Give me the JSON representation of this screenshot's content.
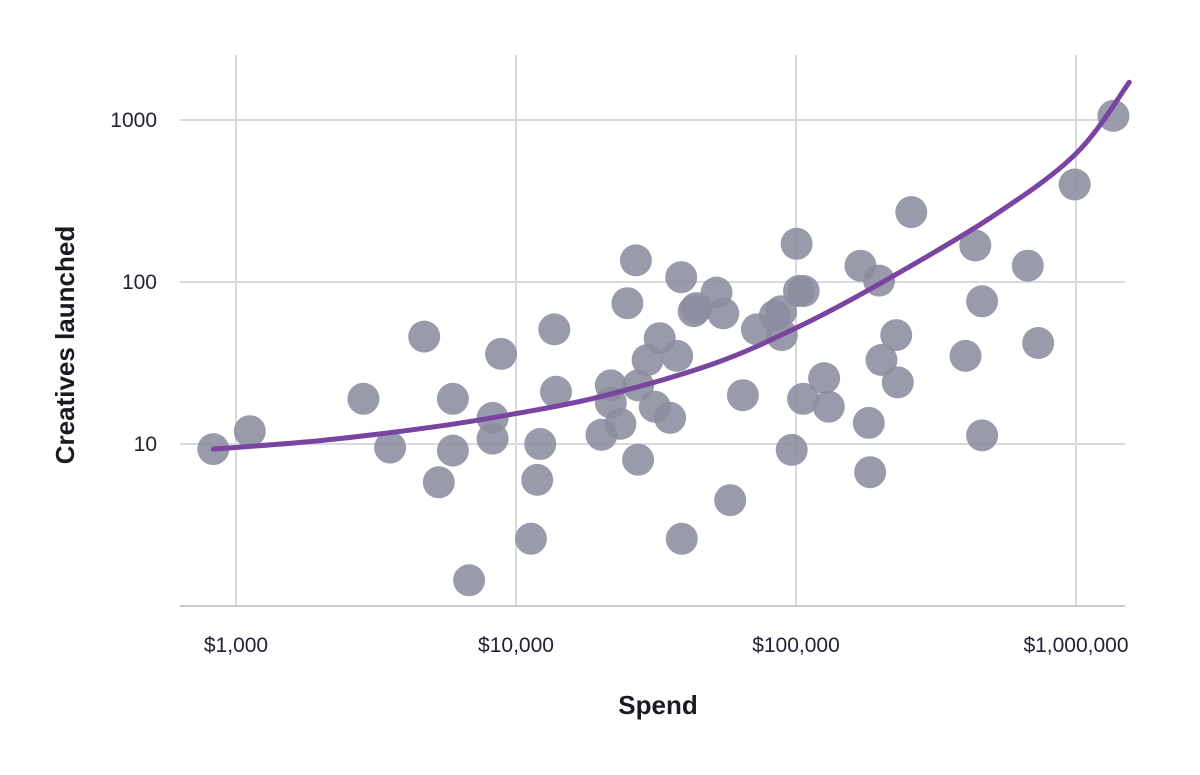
{
  "chart_data": {
    "type": "scatter",
    "title": "",
    "xlabel": "Spend",
    "ylabel": "Creatives launched",
    "x_scale": "log",
    "y_scale": "log",
    "xlim": [
      800,
      1550000
    ],
    "ylim": [
      1.2,
      2000
    ],
    "x_ticks": [
      {
        "value": 1000,
        "label": "$1,000"
      },
      {
        "value": 10000,
        "label": "$10,000"
      },
      {
        "value": 100000,
        "label": "$100,000"
      },
      {
        "value": 1000000,
        "label": "$1,000,000"
      }
    ],
    "y_ticks": [
      {
        "value": 10,
        "label": "10"
      },
      {
        "value": 100,
        "label": "100"
      },
      {
        "value": 1000,
        "label": "1000"
      }
    ],
    "grid": true,
    "legend": "none",
    "colors": {
      "points": "#8b8d9e",
      "trend": "#7a45a0",
      "grid": "#d9d9e0"
    },
    "points": [
      {
        "x": 830,
        "y": 9.3
      },
      {
        "x": 1120,
        "y": 12
      },
      {
        "x": 2850,
        "y": 19
      },
      {
        "x": 3550,
        "y": 9.5
      },
      {
        "x": 4700,
        "y": 46
      },
      {
        "x": 5300,
        "y": 5.8
      },
      {
        "x": 5950,
        "y": 19
      },
      {
        "x": 5950,
        "y": 9.1
      },
      {
        "x": 6800,
        "y": 1.44
      },
      {
        "x": 8250,
        "y": 14.5
      },
      {
        "x": 8250,
        "y": 10.8
      },
      {
        "x": 8850,
        "y": 36
      },
      {
        "x": 11300,
        "y": 2.6
      },
      {
        "x": 11900,
        "y": 6
      },
      {
        "x": 12200,
        "y": 10
      },
      {
        "x": 13700,
        "y": 51
      },
      {
        "x": 13900,
        "y": 21
      },
      {
        "x": 20200,
        "y": 11.4
      },
      {
        "x": 21800,
        "y": 23
      },
      {
        "x": 21800,
        "y": 18
      },
      {
        "x": 23600,
        "y": 13.3
      },
      {
        "x": 25000,
        "y": 74
      },
      {
        "x": 26800,
        "y": 136
      },
      {
        "x": 27300,
        "y": 23
      },
      {
        "x": 27300,
        "y": 8
      },
      {
        "x": 29500,
        "y": 33
      },
      {
        "x": 31300,
        "y": 17
      },
      {
        "x": 32600,
        "y": 45
      },
      {
        "x": 35500,
        "y": 14.5
      },
      {
        "x": 37600,
        "y": 35
      },
      {
        "x": 38900,
        "y": 107
      },
      {
        "x": 39100,
        "y": 2.6
      },
      {
        "x": 43100,
        "y": 66
      },
      {
        "x": 44100,
        "y": 69
      },
      {
        "x": 52000,
        "y": 86
      },
      {
        "x": 55000,
        "y": 64
      },
      {
        "x": 58200,
        "y": 4.5
      },
      {
        "x": 64600,
        "y": 20
      },
      {
        "x": 72500,
        "y": 51
      },
      {
        "x": 84000,
        "y": 62
      },
      {
        "x": 88500,
        "y": 66
      },
      {
        "x": 89000,
        "y": 47
      },
      {
        "x": 96500,
        "y": 9.2
      },
      {
        "x": 100500,
        "y": 172
      },
      {
        "x": 102500,
        "y": 88
      },
      {
        "x": 106000,
        "y": 19
      },
      {
        "x": 106500,
        "y": 88
      },
      {
        "x": 126000,
        "y": 25.5
      },
      {
        "x": 131000,
        "y": 17
      },
      {
        "x": 170000,
        "y": 126
      },
      {
        "x": 182000,
        "y": 13.5
      },
      {
        "x": 184000,
        "y": 6.7
      },
      {
        "x": 198000,
        "y": 102
      },
      {
        "x": 202000,
        "y": 33
      },
      {
        "x": 228000,
        "y": 47
      },
      {
        "x": 231000,
        "y": 24
      },
      {
        "x": 258000,
        "y": 270
      },
      {
        "x": 403000,
        "y": 35
      },
      {
        "x": 437000,
        "y": 168
      },
      {
        "x": 462000,
        "y": 76
      },
      {
        "x": 462000,
        "y": 11.3
      },
      {
        "x": 673000,
        "y": 126
      },
      {
        "x": 733000,
        "y": 42
      },
      {
        "x": 989000,
        "y": 400
      },
      {
        "x": 1360000,
        "y": 1060
      }
    ],
    "trend": {
      "type": "line",
      "points": [
        {
          "x": 830,
          "y": 9.3
        },
        {
          "x": 2000,
          "y": 10.5
        },
        {
          "x": 5000,
          "y": 12.7
        },
        {
          "x": 10000,
          "y": 15.4
        },
        {
          "x": 20000,
          "y": 19.6
        },
        {
          "x": 50000,
          "y": 31
        },
        {
          "x": 100000,
          "y": 52
        },
        {
          "x": 200000,
          "y": 98
        },
        {
          "x": 500000,
          "y": 252
        },
        {
          "x": 1000000,
          "y": 620
        },
        {
          "x": 1550000,
          "y": 1710
        }
      ]
    }
  }
}
